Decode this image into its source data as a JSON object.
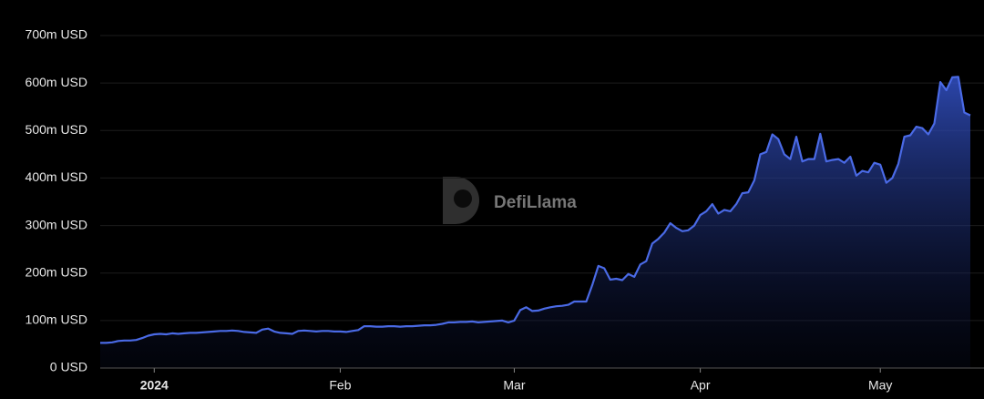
{
  "chart_data": {
    "type": "area",
    "watermark": "DefiLlama",
    "categories": [
      null,
      null,
      null,
      null,
      null,
      null,
      null,
      null,
      null,
      "2024",
      null,
      null,
      null,
      null,
      null,
      null,
      null,
      null,
      null,
      null,
      null,
      null,
      null,
      null,
      null,
      null,
      null,
      null,
      null,
      null,
      null,
      null,
      null,
      null,
      null,
      null,
      null,
      null,
      null,
      null,
      "Feb",
      null,
      null,
      null,
      null,
      null,
      null,
      null,
      null,
      null,
      null,
      null,
      null,
      null,
      null,
      null,
      null,
      null,
      null,
      null,
      null,
      null,
      null,
      null,
      null,
      null,
      null,
      null,
      null,
      "Mar",
      null,
      null,
      null,
      null,
      null,
      null,
      null,
      null,
      null,
      null,
      null,
      null,
      null,
      null,
      null,
      null,
      null,
      null,
      null,
      null,
      null,
      null,
      null,
      null,
      null,
      null,
      null,
      null,
      null,
      null,
      "Apr",
      null,
      null,
      null,
      null,
      null,
      null,
      null,
      null,
      null,
      null,
      null,
      null,
      null,
      null,
      null,
      null,
      null,
      null,
      null,
      null,
      null,
      null,
      null,
      null,
      null,
      null,
      null,
      null,
      null,
      "May",
      null,
      null,
      null,
      null,
      null,
      null,
      null,
      null,
      null,
      null,
      null,
      null,
      null,
      null,
      null
    ],
    "series": [
      {
        "color": "#4a6ae6",
        "values": [
          53,
          53,
          54,
          57,
          58,
          58,
          59,
          63,
          68,
          71,
          72,
          71,
          73,
          72,
          73,
          74,
          74,
          75,
          76,
          77,
          78,
          78,
          79,
          78,
          76,
          75,
          74,
          81,
          83,
          77,
          74,
          73,
          72,
          78,
          79,
          78,
          77,
          78,
          78,
          77,
          77,
          76,
          78,
          80,
          88,
          88,
          87,
          87,
          88,
          88,
          87,
          88,
          88,
          89,
          90,
          90,
          91,
          93,
          96,
          96,
          97,
          97,
          98,
          96,
          97,
          98,
          99,
          100,
          96,
          100,
          122,
          128,
          120,
          121,
          125,
          128,
          130,
          131,
          133,
          140,
          140,
          140,
          175,
          215,
          210,
          186,
          188,
          185,
          198,
          192,
          218,
          225,
          262,
          272,
          285,
          305,
          295,
          288,
          290,
          300,
          322,
          330,
          345,
          325,
          333,
          330,
          345,
          368,
          370,
          395,
          450,
          455,
          492,
          482,
          450,
          440,
          487,
          435,
          440,
          440,
          493,
          435,
          438,
          440,
          432,
          445,
          405,
          415,
          412,
          432,
          428,
          390,
          400,
          430,
          487,
          490,
          508,
          505,
          492,
          515,
          602,
          585,
          612,
          613,
          538,
          532
        ]
      }
    ],
    "ylim": [
      0,
      700
    ],
    "yticks": [
      {
        "value": 0,
        "label": "0 USD"
      },
      {
        "value": 100,
        "label": "100m USD"
      },
      {
        "value": 200,
        "label": "200m USD"
      },
      {
        "value": 300,
        "label": "300m USD"
      },
      {
        "value": 400,
        "label": "400m USD"
      },
      {
        "value": 500,
        "label": "500m USD"
      },
      {
        "value": 600,
        "label": "600m USD"
      },
      {
        "value": 700,
        "label": "700m USD"
      }
    ],
    "grid": true
  }
}
